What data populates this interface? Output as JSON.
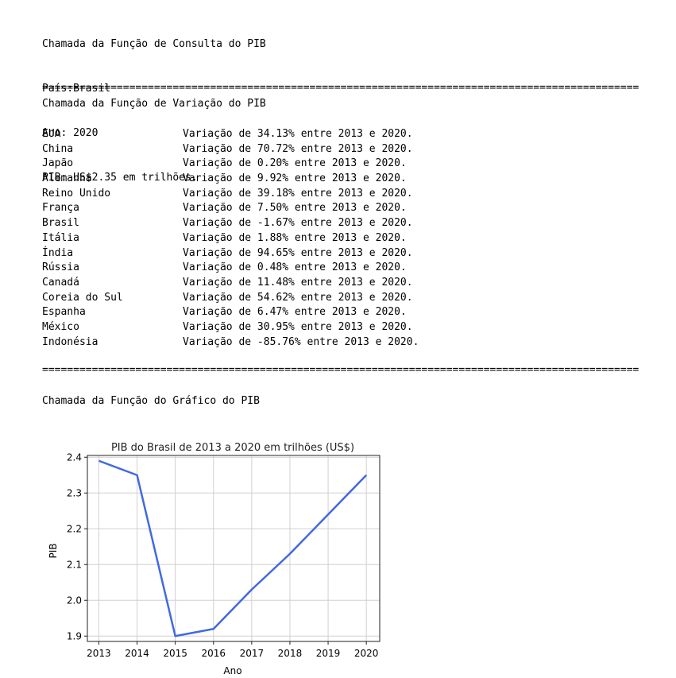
{
  "consulta": {
    "title": "Chamada da Função de Consulta do PIB",
    "pais": "País:Brasil",
    "ano": "Ano: 2020",
    "pib": "PIB: US$2.35 em trilhões."
  },
  "separator": "================================================================================================",
  "variacao": {
    "title": "Chamada da Função de Variação do PIB",
    "rows": [
      {
        "country": "EUA",
        "text": "Variação de 34.13% entre 2013 e 2020."
      },
      {
        "country": "China",
        "text": "Variação de 70.72% entre 2013 e 2020."
      },
      {
        "country": "Japão",
        "text": "Variação de 0.20% entre 2013 e 2020."
      },
      {
        "country": "Alemanha",
        "text": "Variação de 9.92% entre 2013 e 2020."
      },
      {
        "country": "Reino Unido",
        "text": "Variação de 39.18% entre 2013 e 2020."
      },
      {
        "country": "França",
        "text": "Variação de 7.50% entre 2013 e 2020."
      },
      {
        "country": "Brasil",
        "text": "Variação de -1.67% entre 2013 e 2020."
      },
      {
        "country": "Itália",
        "text": "Variação de 1.88% entre 2013 e 2020."
      },
      {
        "country": "Índia",
        "text": "Variação de 94.65% entre 2013 e 2020."
      },
      {
        "country": "Rússia",
        "text": "Variação de 0.48% entre 2013 e 2020."
      },
      {
        "country": "Canadá",
        "text": "Variação de 11.48% entre 2013 e 2020."
      },
      {
        "country": "Coreia do Sul",
        "text": "Variação de 54.62% entre 2013 e 2020."
      },
      {
        "country": "Espanha",
        "text": "Variação de 6.47% entre 2013 e 2020."
      },
      {
        "country": "México",
        "text": "Variação de 30.95% entre 2013 e 2020."
      },
      {
        "country": "Indonésia",
        "text": "Variação de -85.76% entre 2013 e 2020."
      }
    ]
  },
  "grafico": {
    "title": "Chamada da Função do Gráfico do PIB"
  },
  "chart_data": {
    "type": "line",
    "title": "PIB do Brasil de 2013 a 2020 em trilhões (US$)",
    "xlabel": "Ano",
    "ylabel": "PIB",
    "x": [
      2013,
      2014,
      2015,
      2016,
      2017,
      2018,
      2019,
      2020
    ],
    "y": [
      2.39,
      2.35,
      1.9,
      1.92,
      2.03,
      2.13,
      2.24,
      2.35
    ],
    "x_ticks": [
      "2013",
      "2014",
      "2015",
      "2016",
      "2017",
      "2018",
      "2019",
      "2020"
    ],
    "y_ticks": [
      "1.9",
      "2.0",
      "2.1",
      "2.2",
      "2.3",
      "2.4"
    ],
    "ylim": [
      1.885,
      2.405
    ],
    "grid": true,
    "line_color": "#4169e1"
  }
}
